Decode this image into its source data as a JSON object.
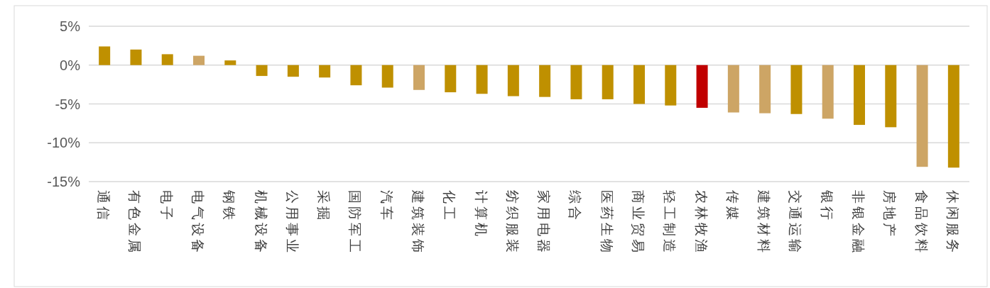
{
  "chart_data": {
    "type": "bar",
    "categories": [
      "通信",
      "有色金属",
      "电子",
      "电气设备",
      "钢铁",
      "机械设备",
      "公用事业",
      "采掘",
      "国防军工",
      "汽车",
      "建筑装饰",
      "化工",
      "计算机",
      "纺织服装",
      "家用电器",
      "综合",
      "医药生物",
      "商业贸易",
      "轻工制造",
      "农林牧渔",
      "传媒",
      "建筑材料",
      "交通运输",
      "银行",
      "非银金融",
      "房地产",
      "食品饮料",
      "休闲服务"
    ],
    "values": [
      2.4,
      2.0,
      1.4,
      1.2,
      0.6,
      -1.4,
      -1.5,
      -1.6,
      -2.6,
      -2.9,
      -3.2,
      -3.5,
      -3.7,
      -4.0,
      -4.1,
      -4.4,
      -4.4,
      -5.0,
      -5.2,
      -5.5,
      -6.1,
      -6.2,
      -6.3,
      -6.9,
      -7.7,
      -8.0,
      -13.1,
      -13.2
    ],
    "colors": [
      "#bf9000",
      "#bf9000",
      "#bf9000",
      "#cda565",
      "#bf9000",
      "#bf9000",
      "#bf9000",
      "#bf9000",
      "#bf9000",
      "#bf9000",
      "#cda565",
      "#bf9000",
      "#bf9000",
      "#bf9000",
      "#bf9000",
      "#bf9000",
      "#bf9000",
      "#bf9000",
      "#bf9000",
      "#c00000",
      "#cda565",
      "#cda565",
      "#bf9000",
      "#cda565",
      "#bf9000",
      "#bf9000",
      "#cda565",
      "#bf9000"
    ],
    "ylim": [
      -15,
      5
    ],
    "yticks": [
      {
        "value": 5,
        "label": "5%"
      },
      {
        "value": 0,
        "label": "0%"
      },
      {
        "value": -5,
        "label": "-5%"
      },
      {
        "value": -10,
        "label": "-10%"
      },
      {
        "value": -15,
        "label": "-15%"
      }
    ],
    "grid": "y"
  }
}
